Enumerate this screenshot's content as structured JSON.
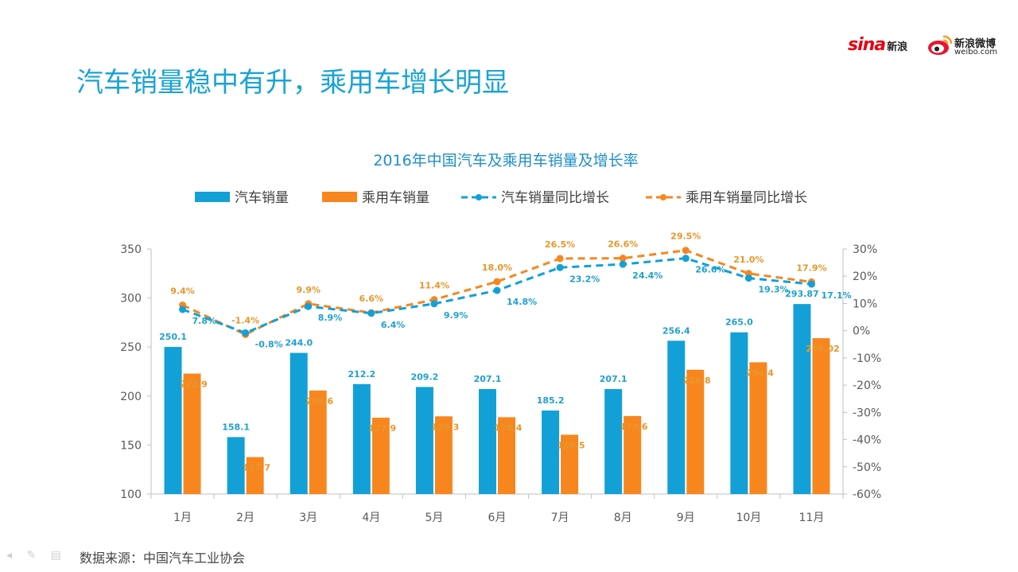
{
  "slide": {
    "title": "汽车销量稳中有升，乘用车增长明显",
    "source": "数据来源：中国汽车工业协会",
    "logos": {
      "sina_mark": "sina",
      "sina_cn": "新浪",
      "weibo_cn": "新浪微博",
      "weibo_en": "weibo.com"
    },
    "nav_icons": [
      "back-arrow-icon",
      "pen-icon",
      "menu-icon"
    ]
  },
  "colors": {
    "blue": "#12a0d7",
    "orange": "#f7861f",
    "title": "#1aa3d6"
  },
  "chart_data": {
    "type": "bar",
    "title": "2016年中国汽车及乘用车销量及增长率",
    "categories": [
      "1月",
      "2月",
      "3月",
      "4月",
      "5月",
      "6月",
      "7月",
      "8月",
      "9月",
      "10月",
      "11月"
    ],
    "series": [
      {
        "name": "汽车销量",
        "kind": "bar",
        "axis": "left",
        "values": [
          250.1,
          158.1,
          244.0,
          212.2,
          209.2,
          207.1,
          185.2,
          207.1,
          256.4,
          265.0,
          293.87
        ],
        "labels": [
          "250.1",
          "158.1",
          "244.0",
          "212.2",
          "209.2",
          "207.1",
          "185.2",
          "207.1",
          "256.4",
          "265.0",
          "293.87"
        ]
      },
      {
        "name": "乘用车销量",
        "kind": "bar",
        "axis": "left",
        "values": [
          222.9,
          137.7,
          205.6,
          177.9,
          179.3,
          178.4,
          160.5,
          179.6,
          226.8,
          234.4,
          259.02
        ],
        "labels": [
          "222.9",
          "137.7",
          "205.6",
          "177.9",
          "179.3",
          "178.4",
          "160.5",
          "179.6",
          "226.8",
          "234.4",
          "259.02"
        ]
      },
      {
        "name": "汽车销量同比增长",
        "kind": "line",
        "axis": "right",
        "values": [
          7.8,
          -0.8,
          8.9,
          6.4,
          9.9,
          14.8,
          23.2,
          24.4,
          26.6,
          19.3,
          17.1
        ],
        "labels": [
          "7.8%",
          "-0.8%",
          "8.9%",
          "6.4%",
          "9.9%",
          "14.8%",
          "23.2%",
          "24.4%",
          "26.6%",
          "19.3%",
          "17.1%"
        ]
      },
      {
        "name": "乘用车销量同比增长",
        "kind": "line",
        "axis": "right",
        "values": [
          9.4,
          -1.4,
          9.9,
          6.6,
          11.4,
          18.0,
          26.5,
          26.6,
          29.5,
          21.0,
          17.9
        ],
        "labels": [
          "9.4%",
          "-1.4%",
          "9.9%",
          "6.6%",
          "11.4%",
          "18.0%",
          "26.5%",
          "26.6%",
          "29.5%",
          "21.0%",
          "17.9%"
        ]
      }
    ],
    "left_axis": {
      "range": [
        100,
        350
      ],
      "ticks": [
        "100",
        "150",
        "200",
        "250",
        "300",
        "350"
      ]
    },
    "right_axis": {
      "range": [
        -60,
        30
      ],
      "ticks": [
        "-60%",
        "-50%",
        "-40%",
        "-30%",
        "-20%",
        "-10%",
        "0%",
        "10%",
        "20%",
        "30%"
      ]
    },
    "legend_position": "top",
    "grid": false
  }
}
